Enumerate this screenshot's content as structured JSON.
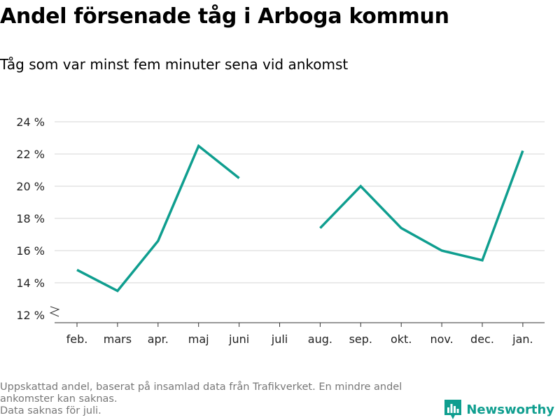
{
  "colors": {
    "line": "#0f9e8f",
    "grid": "#d4d4d4",
    "axis": "#333333",
    "footnote": "#777777",
    "brand": "#0f9e8f"
  },
  "footnote": {
    "line1": "Uppskattad andel, baserat på insamlad data från Trafikverket. En mindre andel ankomster kan saknas.",
    "line2": "Data saknas för juli."
  },
  "brand": {
    "name": "Newsworthy",
    "icon": "bar-chart-logo-icon"
  },
  "chart_data": {
    "type": "line",
    "title": "Andel försenade tåg i Arboga kommun",
    "subtitle": "Tåg som var minst fem minuter sena vid ankomst",
    "xlabel": "",
    "ylabel": "",
    "categories": [
      "feb.",
      "mars",
      "apr.",
      "maj",
      "juni",
      "juli",
      "aug.",
      "sep.",
      "okt.",
      "nov.",
      "dec.",
      "jan."
    ],
    "series": [
      {
        "values": [
          14.8,
          13.5,
          16.6,
          22.5,
          20.5,
          null,
          17.4,
          20.0,
          17.4,
          16.0,
          15.4,
          22.2
        ]
      }
    ],
    "ylim": [
      12,
      24
    ],
    "yticks": [
      12,
      14,
      16,
      18,
      20,
      22,
      24
    ],
    "ytick_labels": [
      "12 %",
      "14 %",
      "16 %",
      "18 %",
      "20 %",
      "22 %",
      "24 %"
    ],
    "axis_break": true,
    "grid": true,
    "legend": "none"
  }
}
